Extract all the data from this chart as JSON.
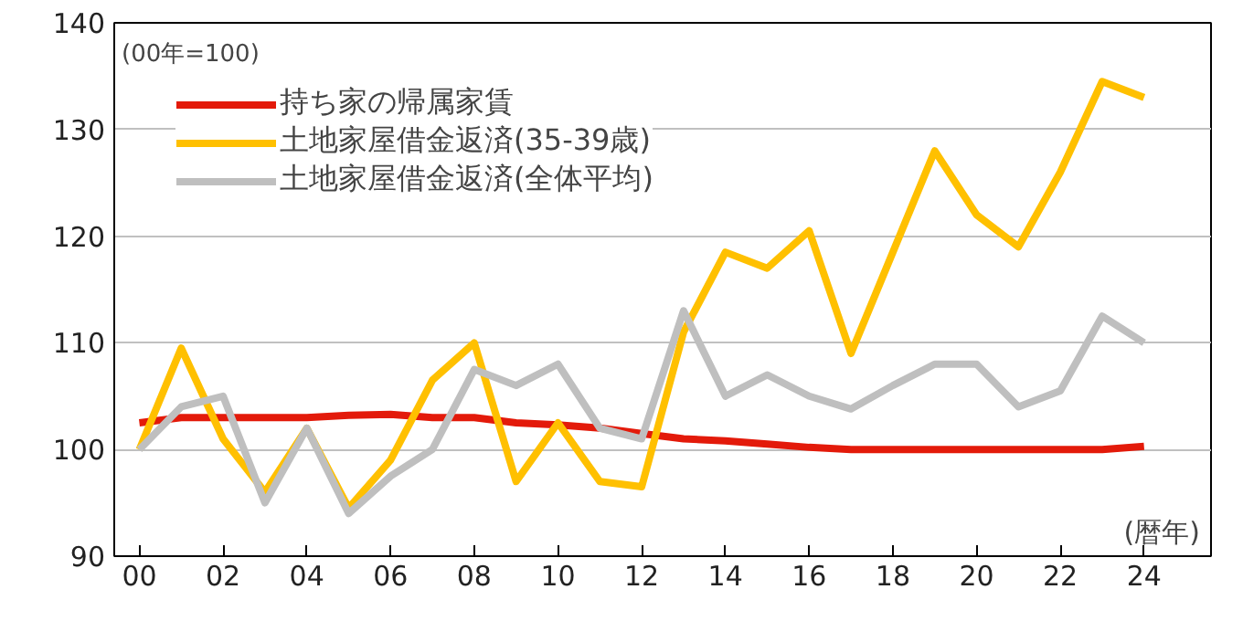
{
  "chart_data": {
    "type": "line",
    "x": [
      2000,
      2001,
      2002,
      2003,
      2004,
      2005,
      2006,
      2007,
      2008,
      2009,
      2010,
      2011,
      2012,
      2013,
      2014,
      2015,
      2016,
      2017,
      2018,
      2019,
      2020,
      2021,
      2022,
      2023,
      2024
    ],
    "series": [
      {
        "name": "持ち家の帰属家賃",
        "color": "#e31a0a",
        "values": [
          102.5,
          103,
          103,
          103,
          103,
          103.2,
          103.3,
          103,
          103,
          102.5,
          102.3,
          102,
          101.5,
          101,
          100.8,
          100.5,
          100.2,
          100,
          100,
          100,
          100,
          100,
          100,
          100,
          100.3
        ]
      },
      {
        "name": "土地家屋借金返済(35-39歳)",
        "color": "#ffc000",
        "values": [
          100,
          109.5,
          101,
          96,
          102,
          94.5,
          99,
          106.5,
          110,
          97,
          102.5,
          97,
          96.5,
          111,
          118.5,
          117,
          120.5,
          109,
          118.5,
          128,
          122,
          119,
          126,
          134.5,
          133
        ]
      },
      {
        "name": "土地家屋借金返済(全体平均)",
        "color": "#bfbfbf",
        "values": [
          100,
          104,
          105,
          95,
          102,
          94,
          97.5,
          100,
          107.5,
          106,
          108,
          102,
          101,
          113,
          105,
          107,
          105,
          103.8,
          106,
          108,
          108,
          104,
          105.5,
          112.5,
          110
        ]
      }
    ],
    "xlim": [
      1999.4,
      2025.6
    ],
    "xticks": [
      {
        "value": 2000,
        "label": "00"
      },
      {
        "value": 2002,
        "label": "02"
      },
      {
        "value": 2004,
        "label": "04"
      },
      {
        "value": 2006,
        "label": "06"
      },
      {
        "value": 2008,
        "label": "08"
      },
      {
        "value": 2010,
        "label": "10"
      },
      {
        "value": 2012,
        "label": "12"
      },
      {
        "value": 2014,
        "label": "14"
      },
      {
        "value": 2016,
        "label": "16"
      },
      {
        "value": 2018,
        "label": "18"
      },
      {
        "value": 2020,
        "label": "20"
      },
      {
        "value": 2022,
        "label": "22"
      },
      {
        "value": 2024,
        "label": "24"
      }
    ],
    "ylim": [
      90,
      140
    ],
    "yticks": [
      90,
      100,
      110,
      120,
      130,
      140
    ],
    "grid": "y",
    "legend": "top left",
    "annotations": [
      {
        "text": "(00年=100)"
      },
      {
        "text": "(暦年)"
      }
    ]
  }
}
